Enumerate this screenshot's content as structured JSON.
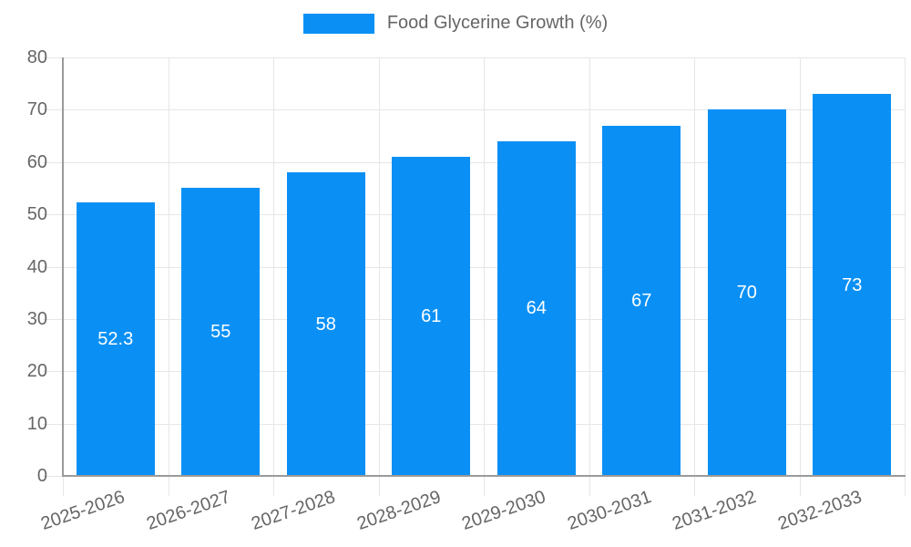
{
  "chart_data": {
    "type": "bar",
    "legend": {
      "label": "Food Glycerine Growth (%)",
      "position": "top"
    },
    "categories": [
      "2025-2026",
      "2026-2027",
      "2027-2028",
      "2028-2029",
      "2029-2030",
      "2030-2031",
      "2031-2032",
      "2032-2033"
    ],
    "values": [
      52.3,
      55,
      58,
      61,
      64,
      67,
      70,
      73
    ],
    "value_labels": [
      "52.3",
      "55",
      "58",
      "61",
      "64",
      "67",
      "70",
      "73"
    ],
    "xlabel": "",
    "ylabel": "",
    "ylim": [
      0,
      80
    ],
    "yticks": [
      0,
      10,
      20,
      30,
      40,
      50,
      60,
      70,
      80
    ],
    "ytick_labels": [
      "0",
      "10",
      "20",
      "30",
      "40",
      "50",
      "60",
      "70",
      "80"
    ],
    "grid": true,
    "colors": {
      "bar": "#0a90f5",
      "grid": "#e6e6e6",
      "axis": "#9a9a9a",
      "tick_text": "#666666",
      "value_text": "#ffffff"
    }
  }
}
